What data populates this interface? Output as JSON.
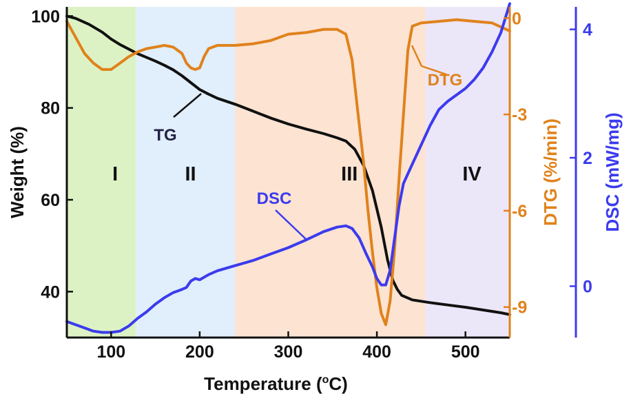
{
  "chart_data": {
    "type": "line",
    "title": "",
    "xlabel": "Temperature (°C)",
    "xlabel_parts": {
      "before": "Temperature (",
      "sup": "o",
      "after": "C)"
    },
    "xlim": [
      50,
      550
    ],
    "xticks": [
      100,
      200,
      300,
      400,
      500
    ],
    "axes": {
      "weight": {
        "label": "Weight (%)",
        "ylim": [
          30,
          102
        ],
        "ticks": [
          40,
          60,
          80,
          100
        ],
        "side": "left",
        "color": "#111111"
      },
      "dtg": {
        "label": "DTG (%/min)",
        "ylim": [
          -9.95,
          0.35
        ],
        "ticks": [
          0,
          -3,
          -6,
          -9
        ],
        "side": "right",
        "color": "#E0821C"
      },
      "dsc": {
        "label": "DSC (mW/mg)",
        "ylim": [
          -0.8,
          4.35
        ],
        "ticks": [
          0,
          2,
          4
        ],
        "side": "right-outer",
        "color": "#3B3BEE"
      }
    },
    "regions": [
      {
        "label": "I",
        "x": [
          50,
          128
        ],
        "color": "#DDF2C4"
      },
      {
        "label": "II",
        "x": [
          128,
          240
        ],
        "color": "#E1EEFB"
      },
      {
        "label": "III",
        "x": [
          240,
          455
        ],
        "color": "#FCE3D2"
      },
      {
        "label": "IV",
        "x": [
          455,
          550
        ],
        "color": "#ECE6F9"
      }
    ],
    "series": [
      {
        "name": "TG",
        "axis": "weight",
        "color": "#111111",
        "x": [
          50,
          60,
          75,
          90,
          100,
          110,
          120,
          130,
          140,
          150,
          160,
          170,
          180,
          190,
          200,
          210,
          220,
          240,
          260,
          280,
          300,
          320,
          340,
          355,
          365,
          375,
          385,
          395,
          405,
          412,
          418,
          423,
          428,
          440,
          460,
          480,
          500,
          520,
          540,
          550
        ],
        "values": [
          100,
          99.5,
          98.2,
          96.5,
          95,
          93.8,
          92.8,
          91.8,
          91.0,
          90.2,
          89.3,
          88.3,
          87.0,
          85.5,
          84.0,
          83.0,
          82.1,
          80.8,
          79.3,
          77.8,
          76.5,
          75.4,
          74.4,
          73.5,
          72.8,
          71.0,
          67.5,
          62.0,
          54.0,
          47.0,
          42.5,
          40.5,
          39.2,
          38.2,
          37.6,
          37.1,
          36.6,
          36.0,
          35.4,
          35.0
        ]
      },
      {
        "name": "DTG",
        "axis": "dtg",
        "color": "#E0821C",
        "x": [
          50,
          60,
          70,
          80,
          90,
          100,
          110,
          120,
          130,
          140,
          150,
          160,
          170,
          180,
          185,
          190,
          195,
          200,
          205,
          210,
          220,
          240,
          260,
          280,
          300,
          320,
          340,
          355,
          365,
          372,
          378,
          385,
          390,
          395,
          400,
          405,
          410,
          415,
          420,
          425,
          430,
          435,
          440,
          450,
          470,
          490,
          510,
          530,
          550
        ],
        "values": [
          -0.1,
          -0.6,
          -1.1,
          -1.4,
          -1.6,
          -1.6,
          -1.4,
          -1.2,
          -1.05,
          -0.95,
          -0.9,
          -0.85,
          -0.9,
          -1.1,
          -1.4,
          -1.55,
          -1.6,
          -1.55,
          -1.2,
          -0.95,
          -0.85,
          -0.85,
          -0.8,
          -0.7,
          -0.5,
          -0.45,
          -0.35,
          -0.35,
          -0.5,
          -1.3,
          -2.8,
          -4.5,
          -6.0,
          -7.3,
          -8.4,
          -9.2,
          -9.55,
          -8.8,
          -7.2,
          -5.0,
          -3.0,
          -1.0,
          -0.25,
          -0.15,
          -0.1,
          -0.05,
          -0.1,
          -0.15,
          -0.4
        ]
      },
      {
        "name": "DSC",
        "axis": "dsc",
        "color": "#3B3BEE",
        "x": [
          50,
          60,
          70,
          80,
          90,
          100,
          110,
          120,
          130,
          140,
          150,
          160,
          170,
          180,
          185,
          190,
          195,
          200,
          210,
          220,
          240,
          260,
          280,
          300,
          320,
          340,
          355,
          365,
          372,
          380,
          388,
          395,
          400,
          405,
          410,
          415,
          420,
          425,
          430,
          440,
          450,
          460,
          470,
          480,
          490,
          500,
          510,
          520,
          530,
          540,
          550
        ],
        "values": [
          -0.55,
          -0.6,
          -0.65,
          -0.7,
          -0.72,
          -0.72,
          -0.7,
          -0.62,
          -0.5,
          -0.4,
          -0.28,
          -0.18,
          -0.1,
          -0.05,
          -0.02,
          0.08,
          0.12,
          0.1,
          0.18,
          0.24,
          0.32,
          0.4,
          0.5,
          0.6,
          0.72,
          0.85,
          0.92,
          0.94,
          0.9,
          0.75,
          0.5,
          0.3,
          0.12,
          0.02,
          0.02,
          0.25,
          0.75,
          1.25,
          1.6,
          1.9,
          2.2,
          2.5,
          2.75,
          2.88,
          2.98,
          3.08,
          3.22,
          3.4,
          3.65,
          3.95,
          4.4
        ]
      }
    ],
    "annotations": [
      {
        "text": "TG",
        "series": "TG"
      },
      {
        "text": "DTG",
        "series": "DTG"
      },
      {
        "text": "DSC",
        "series": "DSC"
      }
    ]
  }
}
